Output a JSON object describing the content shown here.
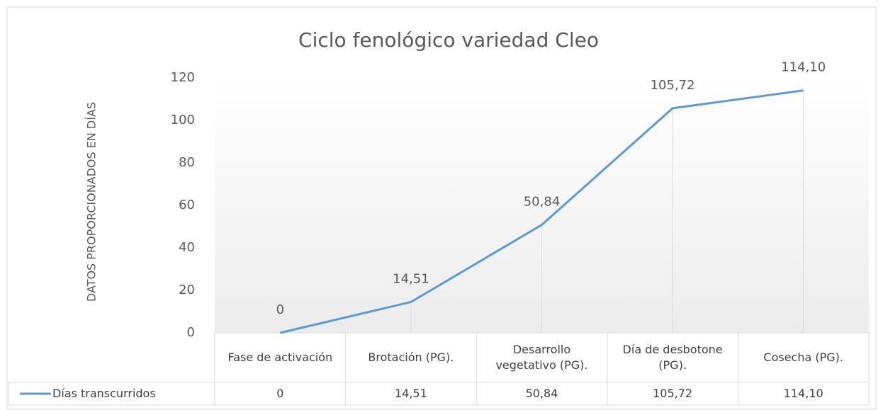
{
  "chart_data": {
    "type": "line",
    "title": "Ciclo fenológico variedad Cleo",
    "y_label": "DATOS PROPORCIONADOS EN DÍAS",
    "categories": [
      "Fase de activación",
      "Brotación (PG).",
      "Desarrollo vegetativo (PG).",
      "Día de desbotone (PG).",
      "Cosecha (PG)."
    ],
    "series": [
      {
        "name": "Días transcurridos",
        "color": "#5b9bd5",
        "values": [
          0,
          14.51,
          50.84,
          105.72,
          114.1
        ],
        "value_labels": [
          "0",
          "14,51",
          "50,84",
          "105,72",
          "114,10"
        ]
      }
    ],
    "ylim": [
      0,
      120
    ],
    "yticks": [
      0,
      20,
      40,
      60,
      80,
      100,
      120
    ],
    "drop_lines": true,
    "data_table": true
  }
}
